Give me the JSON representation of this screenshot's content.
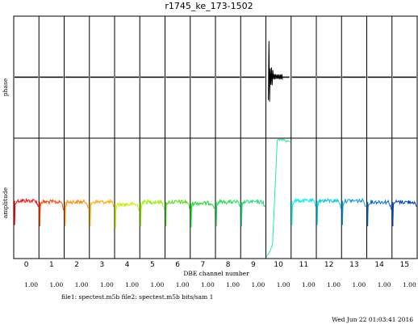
{
  "chart_data": {
    "type": "line",
    "title": "r1745_ke_173-1502",
    "xlabel": "DBE channel number",
    "ylabel_top": "phase",
    "ylabel_bottom": "amplitude",
    "channels": [
      "0",
      "1",
      "2",
      "3",
      "4",
      "5",
      "6",
      "7",
      "8",
      "9",
      "10",
      "11",
      "12",
      "13",
      "14",
      "15"
    ],
    "scale_values": [
      "1.00",
      "1.00",
      "1.00",
      "1.00",
      "1.00",
      "1.00",
      "1.00",
      "1.00",
      "1.00",
      "1.00",
      "1.00",
      "1.00",
      "1.00",
      "1.00",
      "1.00",
      "1.00"
    ],
    "amplitude_levels": [
      0.48,
      0.47,
      0.47,
      0.47,
      0.45,
      0.47,
      0.47,
      0.46,
      0.47,
      0.47,
      0.85,
      0.48,
      0.48,
      0.48,
      0.47,
      0.47
    ],
    "channel_colors": [
      "#ff0000",
      "#ff4400",
      "#ff8800",
      "#ffaa00",
      "#ccee00",
      "#99ee00",
      "#44dd00",
      "#11dd22",
      "#22dd55",
      "#22dd77",
      "#22ee99",
      "#00eeee",
      "#00ccdd",
      "#0099dd",
      "#0066dd",
      "#0044cc"
    ],
    "grid": true
  },
  "footer": {
    "files": "file1: spectest.m5b  file2: spectest.m5b  bits/sam 1",
    "timestamp": "Wed Jun 22 01:03:41 2016"
  }
}
